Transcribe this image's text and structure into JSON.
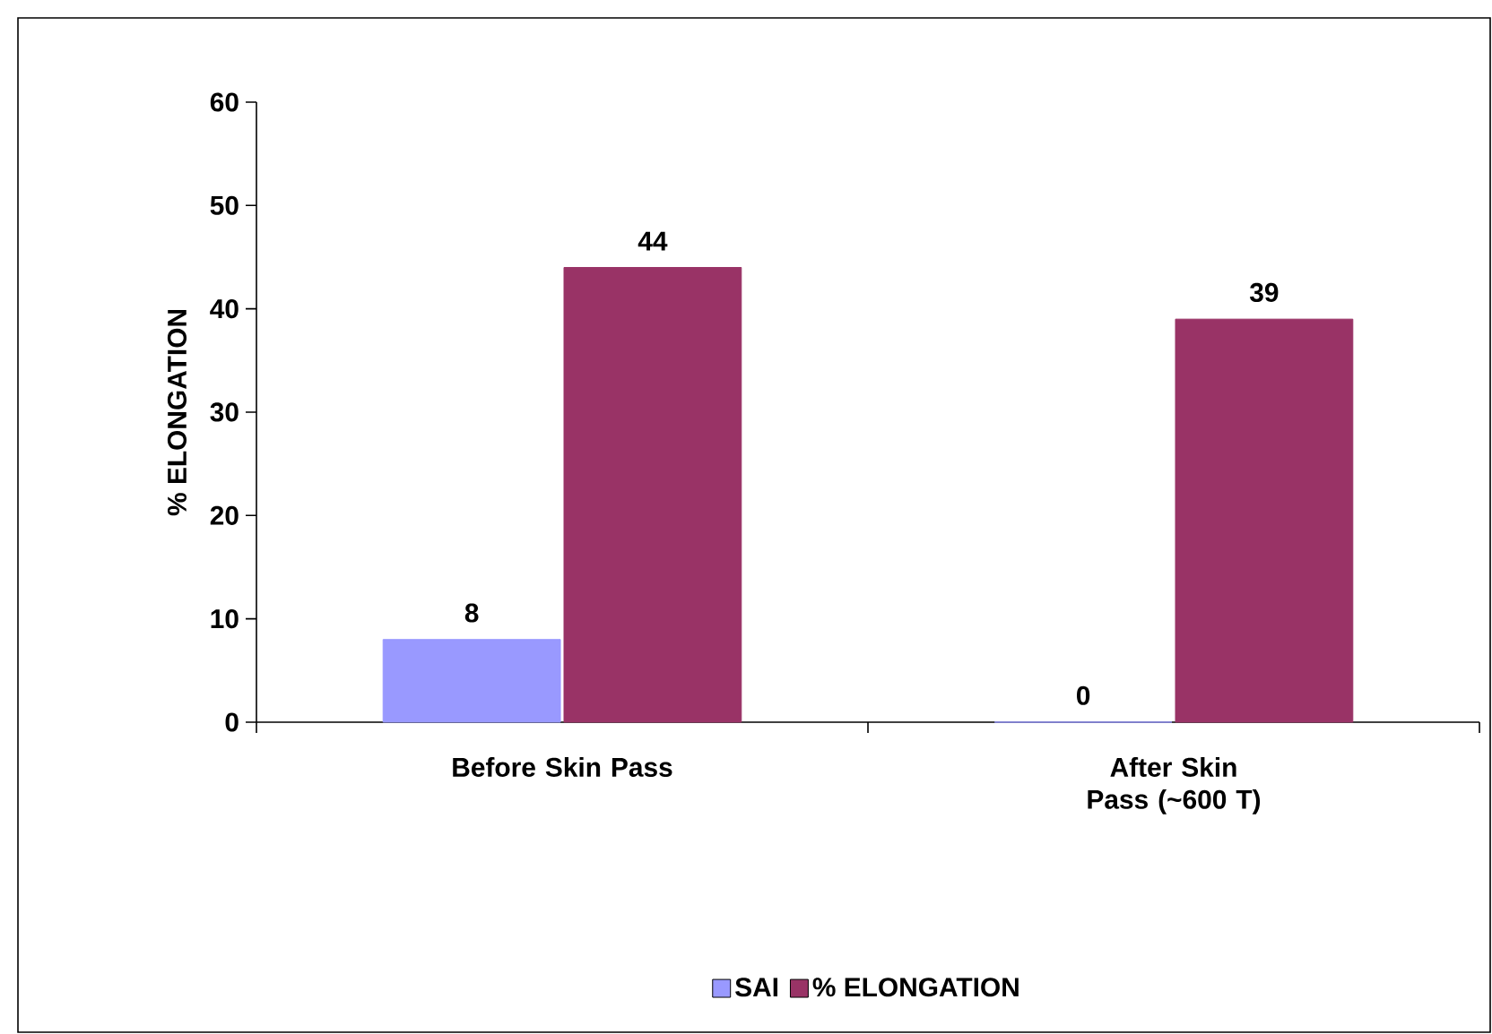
{
  "chart_data": {
    "type": "bar",
    "ylabel": "% ELONGATION",
    "categories": [
      "Before Skin Pass",
      "After Skin Pass (~600 T)"
    ],
    "series": [
      {
        "name": "SAI",
        "color": "#9999ff",
        "values": [
          8,
          0
        ]
      },
      {
        "name": "% ELONGATION",
        "color": "#993366",
        "values": [
          44,
          39
        ]
      }
    ],
    "ylim": [
      0,
      60
    ],
    "yticks": [
      0,
      10,
      20,
      30,
      40,
      50,
      60
    ],
    "data_labels": true,
    "grid": false,
    "legend": "bottom"
  }
}
